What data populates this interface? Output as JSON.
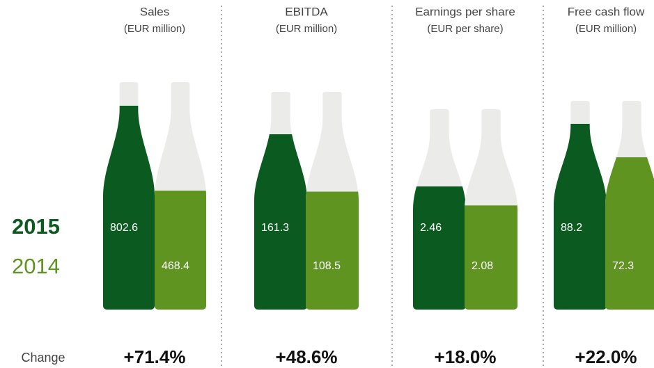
{
  "chart_data": {
    "type": "bottle",
    "series": [
      {
        "name": "2015",
        "color": "#0b5a1f"
      },
      {
        "name": "2014",
        "color": "#5f9421"
      }
    ],
    "change_label": "Change",
    "panels": [
      {
        "title": "Sales",
        "unit": "(EUR million)",
        "values": [
          802.6,
          468.4
        ],
        "change": "+71.4%"
      },
      {
        "title": "EBITDA",
        "unit": "(EUR million)",
        "values": [
          161.3,
          108.5
        ],
        "change": "+48.6%"
      },
      {
        "title": "Earnings per share",
        "unit": "(EUR per share)",
        "values": [
          2.46,
          2.08
        ],
        "change": "+18.0%"
      },
      {
        "title": "Free cash flow",
        "unit": "(EUR million)",
        "values": [
          88.2,
          72.3
        ],
        "change": "+22.0%"
      }
    ]
  }
}
